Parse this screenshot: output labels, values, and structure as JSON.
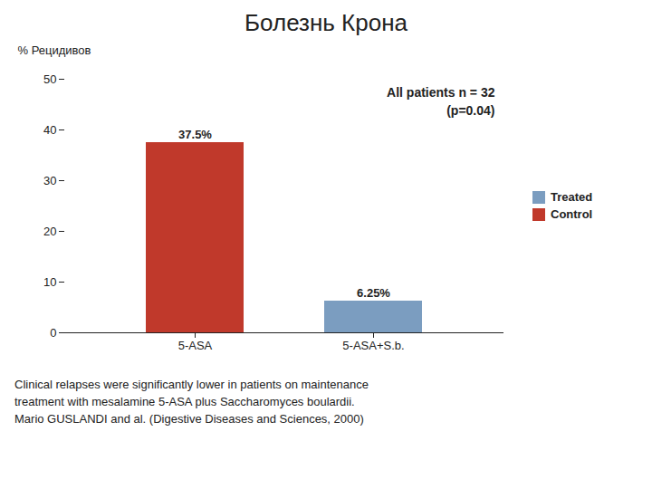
{
  "chart_data": {
    "type": "bar",
    "title": "Болезнь Крона",
    "categories": [
      "5-ASA",
      "5-ASA+S.b."
    ],
    "values": [
      37.5,
      6.25
    ],
    "value_labels": [
      "37.5%",
      "6.25%"
    ],
    "data_labels": true,
    "colors": [
      "#C0392B",
      "#7B9DC0"
    ],
    "ylabel": "% Рецидивов",
    "ylim": [
      0,
      50
    ],
    "yticks": [
      0,
      10,
      20,
      30,
      40,
      50
    ],
    "grid": false,
    "legend": "right",
    "legend_entries": [
      {
        "name": "Treated",
        "color": "#7B9DC0"
      },
      {
        "name": "Control",
        "color": "#C0392B"
      }
    ],
    "annotations": [
      "All patients n = 32",
      "(p=0.04)"
    ],
    "caption": [
      "Clinical relapses were significantly lower in patients on maintenance",
      "treatment with mesalamine 5-ASA plus Saccharomyces boulardii.",
      "Mario GUSLANDI and al. (Digestive Diseases and Sciences, 2000)"
    ]
  }
}
